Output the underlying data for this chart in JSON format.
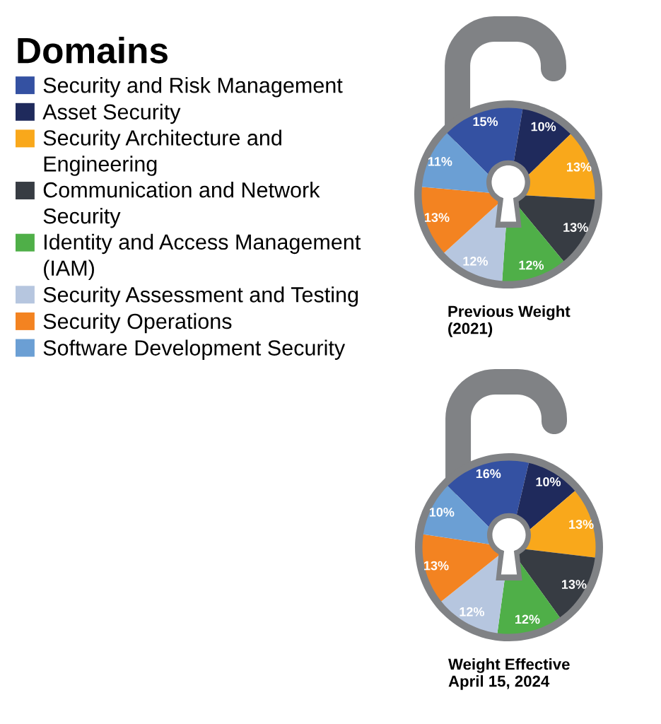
{
  "chart_data": [
    {
      "type": "pie",
      "title": "Previous Weight (2021)",
      "legend_title": "Domains",
      "legend": "left",
      "categories": [
        "Security and Risk Management",
        "Asset Security",
        "Security Architecture and Engineering",
        "Communication and Network Security",
        "Identity and Access Management (IAM)",
        "Security Assessment and Testing",
        "Security Operations",
        "Software Development Security"
      ],
      "values": [
        15,
        10,
        13,
        13,
        12,
        12,
        13,
        11
      ],
      "colors": [
        "#3451a2",
        "#1f2a5c",
        "#f9a81b",
        "#373c43",
        "#4faf48",
        "#b6c6df",
        "#f38321",
        "#6b9fd4"
      ],
      "value_labels": [
        "15%",
        "10%",
        "13%",
        "13%",
        "12%",
        "12%",
        "13%",
        "11%"
      ]
    },
    {
      "type": "pie",
      "title": "Weight Effective April 15, 2024",
      "categories": [
        null,
        null,
        null,
        null,
        null,
        null,
        null,
        null
      ],
      "values": [
        16,
        10,
        13,
        13,
        12,
        12,
        13,
        10
      ],
      "colors": [
        "#3451a2",
        "#1f2a5c",
        "#f9a81b",
        "#373c43",
        "#4faf48",
        "#b6c6df",
        "#f38321",
        "#6b9fd4"
      ],
      "value_labels": [
        "16%",
        "10%",
        "13%",
        "13%",
        "12%",
        "12%",
        "13%",
        "10%"
      ]
    }
  ]
}
